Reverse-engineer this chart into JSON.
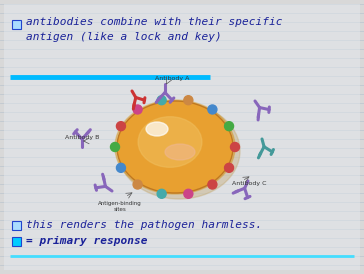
{
  "bg_color": "#d8d8d8",
  "bg_lines_color": "#c0c8d0",
  "panel_color": "#e8eaf0",
  "title_text_line1": "antibodies combine with their specific",
  "title_text_line2": "antigen (like a lock and key)",
  "bullet_color_outline": "#2244cc",
  "bullet1_fill": "#aaddff",
  "bullet2_fill": "#aaddff",
  "bullet3_fill": "#00ccff",
  "text_color": "#1a2299",
  "line_color_top": "#00bbff",
  "line_color_bot": "#44ddff",
  "text1": "this renders the pathogen harmless.",
  "text2": "= primary response",
  "font_size_title": 8.0,
  "font_size_body": 8.0,
  "cell_color": "#e8a030",
  "cell_edge": "#c07820",
  "cell_hi_color": "#ffffff",
  "cell_pk_color": "#f0b090",
  "img_bg": "#f8f4e0",
  "ab_color_purple": "#8866bb",
  "ab_color_red": "#cc3333",
  "ab_color_teal": "#449999",
  "site_colors": [
    "#cc4444",
    "#44aa44",
    "#4488cc",
    "#cc8844",
    "#44aaaa",
    "#cc4488",
    "#cc4444",
    "#44aa44",
    "#4488cc",
    "#cc8844",
    "#44aaaa",
    "#cc4488",
    "#cc4444"
  ]
}
